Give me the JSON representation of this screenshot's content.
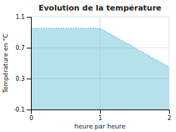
{
  "chart_data": {
    "type": "area",
    "title": "Evolution de la température",
    "xlabel": "heure par heure",
    "ylabel": "Température en °C",
    "x": [
      0,
      1,
      2
    ],
    "values": [
      0.95,
      0.95,
      0.45
    ],
    "color": "#5bbcd6",
    "line_style": "dotted",
    "xlim": [
      0,
      2
    ],
    "ylim": [
      -0.1,
      1.1
    ],
    "xticks": [
      0,
      1,
      2
    ],
    "yticks": [
      -0.1,
      0.3,
      0.7,
      1.1
    ],
    "grid": true
  }
}
